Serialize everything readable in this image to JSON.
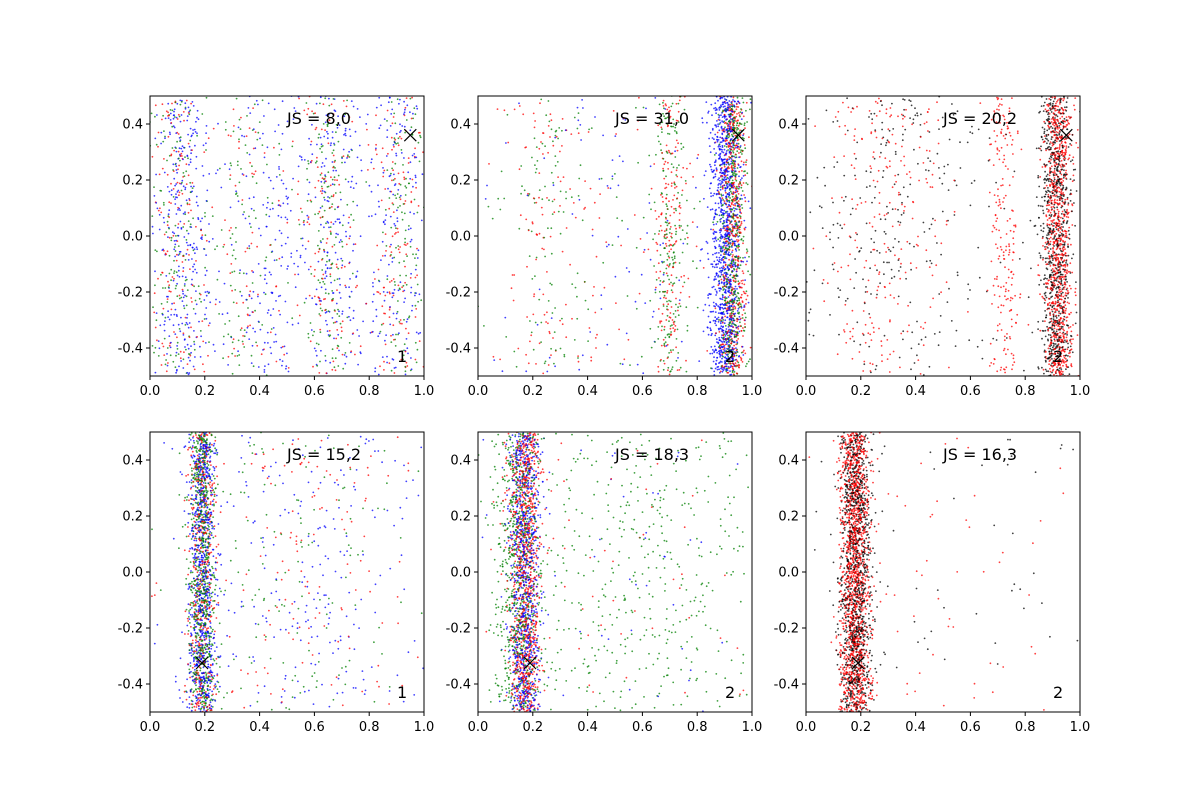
{
  "figure": {
    "panel_count": 6,
    "layout": "2 rows x 3 columns"
  },
  "chart_data": [
    {
      "type": "scatter",
      "annotation": "JS = 8,0",
      "corner_label": "1",
      "xlim": [
        0.0,
        1.0
      ],
      "ylim": [
        -0.5,
        0.5
      ],
      "xticks": [
        "0.0",
        "0.2",
        "0.4",
        "0.6",
        "0.8",
        "1.0"
      ],
      "yticks": [
        "-0.4",
        "-0.2",
        "0.0",
        "0.2",
        "0.4"
      ],
      "marker": {
        "x": 0.95,
        "y": 0.36
      },
      "series": [
        {
          "color": "#0000ff",
          "count": 900,
          "clusters": [
            {
              "cx": 0.12,
              "sx": 0.05,
              "w": 0.3
            },
            {
              "cx": 0.45,
              "sx": 0.08,
              "w": 0.15
            },
            {
              "cx": 0.68,
              "sx": 0.06,
              "w": 0.2
            },
            {
              "cx": 0.9,
              "sx": 0.05,
              "w": 0.2
            },
            {
              "cx": 0.5,
              "sx": 0.35,
              "w": 0.15
            }
          ]
        },
        {
          "color": "#ff0000",
          "count": 500,
          "clusters": [
            {
              "cx": 0.1,
              "sx": 0.05,
              "w": 0.3
            },
            {
              "cx": 0.35,
              "sx": 0.08,
              "w": 0.2
            },
            {
              "cx": 0.65,
              "sx": 0.06,
              "w": 0.25
            },
            {
              "cx": 0.9,
              "sx": 0.05,
              "w": 0.25
            }
          ]
        },
        {
          "color": "#008000",
          "count": 550,
          "clusters": [
            {
              "cx": 0.1,
              "sx": 0.05,
              "w": 0.3
            },
            {
              "cx": 0.35,
              "sx": 0.07,
              "w": 0.2
            },
            {
              "cx": 0.65,
              "sx": 0.05,
              "w": 0.3
            },
            {
              "cx": 0.92,
              "sx": 0.04,
              "w": 0.2
            }
          ]
        }
      ]
    },
    {
      "type": "scatter",
      "annotation": "JS = 31,0",
      "corner_label": "2",
      "xlim": [
        0.0,
        1.0
      ],
      "ylim": [
        -0.5,
        0.5
      ],
      "xticks": [
        "0.0",
        "0.2",
        "0.4",
        "0.6",
        "0.8",
        "1.0"
      ],
      "yticks": [
        "-0.4",
        "-0.2",
        "0.0",
        "0.2",
        "0.4"
      ],
      "marker": {
        "x": 0.95,
        "y": 0.36
      },
      "series": [
        {
          "color": "#0000ff",
          "count": 1200,
          "clusters": [
            {
              "cx": 0.9,
              "sx": 0.03,
              "w": 0.9
            },
            {
              "cx": 0.5,
              "sx": 0.35,
              "w": 0.1
            }
          ]
        },
        {
          "color": "#ff0000",
          "count": 900,
          "clusters": [
            {
              "cx": 0.93,
              "sx": 0.025,
              "w": 0.6
            },
            {
              "cx": 0.7,
              "sx": 0.03,
              "w": 0.2
            },
            {
              "cx": 0.25,
              "sx": 0.08,
              "w": 0.1
            },
            {
              "cx": 0.5,
              "sx": 0.3,
              "w": 0.1
            }
          ]
        },
        {
          "color": "#008000",
          "count": 900,
          "clusters": [
            {
              "cx": 0.93,
              "sx": 0.025,
              "w": 0.6
            },
            {
              "cx": 0.7,
              "sx": 0.03,
              "w": 0.2
            },
            {
              "cx": 0.25,
              "sx": 0.08,
              "w": 0.1
            },
            {
              "cx": 0.5,
              "sx": 0.3,
              "w": 0.1
            }
          ]
        }
      ]
    },
    {
      "type": "scatter",
      "annotation": "JS = 20,2",
      "corner_label": "2",
      "xlim": [
        0.0,
        1.0
      ],
      "ylim": [
        -0.5,
        0.5
      ],
      "xticks": [
        "0.0",
        "0.2",
        "0.4",
        "0.6",
        "0.8",
        "1.0"
      ],
      "yticks": [
        "-0.4",
        "-0.2",
        "0.0",
        "0.2",
        "0.4"
      ],
      "marker": {
        "x": 0.95,
        "y": 0.36
      },
      "series": [
        {
          "color": "#000000",
          "count": 1100,
          "clusters": [
            {
              "cx": 0.91,
              "sx": 0.03,
              "w": 0.7
            },
            {
              "cx": 0.3,
              "sx": 0.15,
              "w": 0.2
            },
            {
              "cx": 0.5,
              "sx": 0.3,
              "w": 0.1
            }
          ]
        },
        {
          "color": "#ff0000",
          "count": 1400,
          "clusters": [
            {
              "cx": 0.92,
              "sx": 0.025,
              "w": 0.7
            },
            {
              "cx": 0.72,
              "sx": 0.03,
              "w": 0.15
            },
            {
              "cx": 0.3,
              "sx": 0.12,
              "w": 0.15
            }
          ]
        }
      ]
    },
    {
      "type": "scatter",
      "annotation": "JS = 15,2",
      "corner_label": "1",
      "xlim": [
        0.0,
        1.0
      ],
      "ylim": [
        -0.5,
        0.5
      ],
      "xticks": [
        "0.0",
        "0.2",
        "0.4",
        "0.6",
        "0.8",
        "1.0"
      ],
      "yticks": [
        "-0.4",
        "-0.2",
        "0.0",
        "0.2",
        "0.4"
      ],
      "marker": {
        "x": 0.19,
        "y": -0.325
      },
      "series": [
        {
          "color": "#0000ff",
          "count": 1000,
          "clusters": [
            {
              "cx": 0.19,
              "sx": 0.025,
              "w": 0.75
            },
            {
              "cx": 0.55,
              "sx": 0.25,
              "w": 0.25
            }
          ]
        },
        {
          "color": "#ff0000",
          "count": 600,
          "clusters": [
            {
              "cx": 0.19,
              "sx": 0.025,
              "w": 0.75
            },
            {
              "cx": 0.55,
              "sx": 0.25,
              "w": 0.25
            }
          ]
        },
        {
          "color": "#008000",
          "count": 900,
          "clusters": [
            {
              "cx": 0.19,
              "sx": 0.025,
              "w": 0.85
            },
            {
              "cx": 0.55,
              "sx": 0.25,
              "w": 0.15
            }
          ]
        }
      ]
    },
    {
      "type": "scatter",
      "annotation": "JS = 18,3",
      "corner_label": "2",
      "xlim": [
        0.0,
        1.0
      ],
      "ylim": [
        -0.5,
        0.5
      ],
      "xticks": [
        "0.0",
        "0.2",
        "0.4",
        "0.6",
        "0.8",
        "1.0"
      ],
      "yticks": [
        "-0.4",
        "-0.2",
        "0.0",
        "0.2",
        "0.4"
      ],
      "marker": {
        "x": 0.19,
        "y": -0.325
      },
      "series": [
        {
          "color": "#0000ff",
          "count": 900,
          "clusters": [
            {
              "cx": 0.17,
              "sx": 0.03,
              "w": 0.95
            },
            {
              "cx": 0.5,
              "sx": 0.3,
              "w": 0.05
            }
          ]
        },
        {
          "color": "#ff0000",
          "count": 1000,
          "clusters": [
            {
              "cx": 0.17,
              "sx": 0.03,
              "w": 0.95
            },
            {
              "cx": 0.5,
              "sx": 0.3,
              "w": 0.05
            }
          ]
        },
        {
          "color": "#008000",
          "count": 1200,
          "clusters": [
            {
              "cx": 0.15,
              "sx": 0.04,
              "w": 0.6
            },
            {
              "cx": 0.55,
              "sx": 0.25,
              "w": 0.4
            }
          ]
        }
      ]
    },
    {
      "type": "scatter",
      "annotation": "JS = 16,3",
      "corner_label": "2",
      "xlim": [
        0.0,
        1.0
      ],
      "ylim": [
        -0.5,
        0.5
      ],
      "xticks": [
        "0.0",
        "0.2",
        "0.4",
        "0.6",
        "0.8",
        "1.0"
      ],
      "yticks": [
        "-0.4",
        "-0.2",
        "0.0",
        "0.2",
        "0.4"
      ],
      "marker": {
        "x": 0.19,
        "y": -0.325
      },
      "series": [
        {
          "color": "#000000",
          "count": 1200,
          "clusters": [
            {
              "cx": 0.18,
              "sx": 0.03,
              "w": 0.95
            },
            {
              "cx": 0.5,
              "sx": 0.3,
              "w": 0.05
            }
          ]
        },
        {
          "color": "#ff0000",
          "count": 1500,
          "clusters": [
            {
              "cx": 0.18,
              "sx": 0.028,
              "w": 0.96
            },
            {
              "cx": 0.55,
              "sx": 0.25,
              "w": 0.04
            }
          ]
        }
      ]
    }
  ]
}
